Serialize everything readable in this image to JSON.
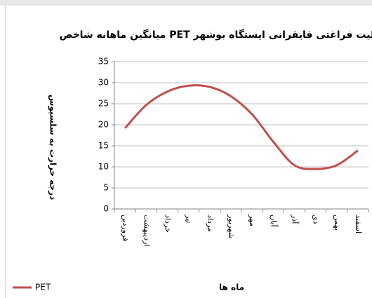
{
  "chart_data": {
    "type": "line",
    "title": "میانگین ماهانه شاخص PET در فعالیت فراغتی قایقرانی ایستگاه بوشهر",
    "x_label": "ماه ها",
    "y_label": "درجه حرارت به سلسیوس",
    "categories": [
      "فروردین",
      "اردیبهشت",
      "خرداد",
      "تیر",
      "مرداد",
      "شهریور",
      "مهر",
      "آبان",
      "آذر",
      "دی",
      "بهمن",
      "اسفند"
    ],
    "series": [
      {
        "name": "PET",
        "color": "#c0504d",
        "values": [
          19.2,
          24.7,
          27.9,
          29.3,
          29.0,
          26.8,
          22.5,
          16.0,
          10.4,
          9.5,
          10.4,
          13.9
        ]
      }
    ],
    "ylim": [
      0,
      35
    ],
    "yticks": [
      0,
      5,
      10,
      15,
      20,
      25,
      30,
      35
    ],
    "grid": true,
    "legend": "bottom-left"
  }
}
